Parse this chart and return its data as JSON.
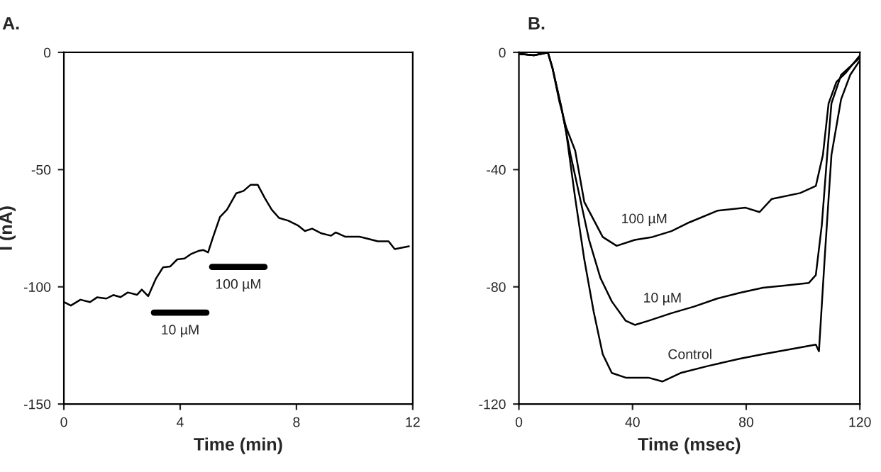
{
  "chart_data": [
    {
      "type": "line",
      "title": "A.",
      "xlabel": "Time (min)",
      "ylabel": "I (nA)",
      "xlim": [
        0,
        12
      ],
      "ylim": [
        -150,
        0
      ],
      "xticks": [
        0,
        4,
        8,
        12
      ],
      "yticks": [
        -150,
        -100,
        -50,
        0
      ],
      "grid": false,
      "legend": false,
      "series": [
        {
          "color": "#000000",
          "x": [
            0,
            0.24,
            0.57,
            0.9,
            1.14,
            1.46,
            1.7,
            1.95,
            2.2,
            2.52,
            2.68,
            2.9,
            3.17,
            3.41,
            3.66,
            3.9,
            4.15,
            4.39,
            4.63,
            4.8,
            4.96,
            5.12,
            5.37,
            5.61,
            5.93,
            6.18,
            6.42,
            6.67,
            6.91,
            7.15,
            7.4,
            7.72,
            8.05,
            8.29,
            8.54,
            8.86,
            9.19,
            9.35,
            9.67,
            10.16,
            10.49,
            10.8,
            11.17,
            11.38,
            11.87
          ],
          "values": [
            -106.5,
            -108,
            -105.5,
            -106.5,
            -104.5,
            -105,
            -103.5,
            -104.4,
            -102.4,
            -103.4,
            -101.2,
            -104,
            -96.4,
            -91.7,
            -91.3,
            -88.3,
            -87.9,
            -85.9,
            -84.7,
            -84.3,
            -85.3,
            -79.2,
            -70.2,
            -67.1,
            -60.1,
            -59.1,
            -56.5,
            -56.5,
            -62.1,
            -67.1,
            -70.6,
            -71.8,
            -73.8,
            -76.2,
            -75.2,
            -77.2,
            -78.2,
            -76.8,
            -78.6,
            -78.6,
            -79.6,
            -80.6,
            -80.6,
            -83.9,
            -82.7
          ]
        },
        {
          "name": "10 µM",
          "color": "#000000",
          "x": [
            3.1,
            4.9
          ],
          "values": [
            -111,
            -111
          ]
        },
        {
          "name": "100 µM",
          "color": "#000000",
          "x": [
            5.1,
            6.9
          ],
          "values": [
            -91.5,
            -91.5
          ]
        }
      ]
    },
    {
      "type": "line",
      "title": "B.",
      "xlabel": "Time (msec)",
      "xlim": [
        0,
        120
      ],
      "ylim": [
        -120,
        0
      ],
      "xticks": [
        0,
        40,
        80,
        120
      ],
      "yticks": [
        -120,
        -80,
        -40,
        0
      ],
      "grid": false,
      "legend": false,
      "series": [
        {
          "name": "100 µM",
          "color": "#000000",
          "x": [
            0,
            5.3,
            10.2,
            11.8,
            14.2,
            16.6,
            19.8,
            23,
            29.5,
            34.4,
            40.8,
            47,
            53.7,
            60,
            70,
            79.8,
            84.7,
            89,
            99,
            104.5,
            107,
            109,
            111.8,
            115,
            119.8
          ],
          "values": [
            -0.5,
            -1,
            0,
            -5.3,
            -16.6,
            -25.5,
            -33.5,
            -51,
            -63,
            -66,
            -64,
            -63,
            -61,
            -58,
            -54,
            -53,
            -54.5,
            -50,
            -48,
            -45.6,
            -35,
            -17.4,
            -10,
            -7,
            -1.3
          ]
        },
        {
          "name": "10 µM",
          "color": "#000000",
          "x": [
            0,
            5.3,
            10.2,
            11.8,
            15,
            18.2,
            21.5,
            24.7,
            28.7,
            32.7,
            37.6,
            40.8,
            45.6,
            53.7,
            61.8,
            69.8,
            77.9,
            85.9,
            94,
            102,
            104.5,
            106.6,
            108.5,
            110,
            113.4,
            119.8
          ],
          "values": [
            -0.5,
            -1,
            0,
            -5.3,
            -19,
            -35,
            -49.7,
            -64,
            -77,
            -85,
            -91.6,
            -93,
            -91.6,
            -89,
            -86.7,
            -84,
            -82,
            -80.3,
            -79.5,
            -78.7,
            -76,
            -59,
            -35,
            -17.4,
            -7.7,
            -2
          ]
        },
        {
          "name": "Control",
          "color": "#000000",
          "x": [
            0,
            5.3,
            10.2,
            11.8,
            15,
            16.6,
            19.8,
            23,
            26.3,
            29.5,
            32.7,
            37.6,
            45.6,
            50.5,
            56.9,
            66.6,
            77.9,
            85.9,
            95.6,
            104.5,
            105.6,
            107.7,
            110,
            113.4,
            116.6,
            119.8
          ],
          "values": [
            -0.5,
            -1,
            0,
            -5.3,
            -19,
            -27,
            -49.7,
            -70.6,
            -88.4,
            -103,
            -109.4,
            -111,
            -111,
            -112.3,
            -109.4,
            -107,
            -104.5,
            -103,
            -101.3,
            -99.7,
            -102,
            -69,
            -35,
            -16,
            -7.7,
            -3
          ]
        }
      ]
    }
  ]
}
